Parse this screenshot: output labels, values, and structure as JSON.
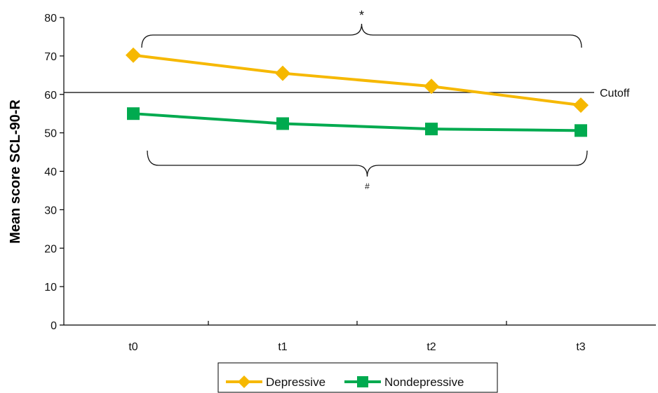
{
  "chart_data": {
    "type": "line",
    "categories": [
      "t0",
      "t1",
      "t2",
      "t3"
    ],
    "series": [
      {
        "name": "Depressive",
        "values": [
          70.2,
          65.5,
          62.1,
          57.2
        ],
        "color": "#F6B800",
        "marker": "diamond"
      },
      {
        "name": "Nondepressive",
        "values": [
          55.0,
          52.4,
          51.0,
          50.6
        ],
        "color": "#00AA4F",
        "marker": "square"
      }
    ],
    "xlabel": "",
    "ylabel": "Mean score SCL-90-R",
    "ylim": [
      0,
      80
    ],
    "yticks": [
      0,
      10,
      20,
      30,
      40,
      50,
      60,
      70,
      80
    ],
    "reference_line": {
      "value": 60.5,
      "label": "Cutoff"
    },
    "annotations": [
      {
        "symbol": "*",
        "applies_to": "Depressive",
        "bracket": "above"
      },
      {
        "symbol": "#",
        "applies_to": "Nondepressive",
        "bracket": "below"
      }
    ],
    "grid": false,
    "legend_position": "bottom-center"
  }
}
